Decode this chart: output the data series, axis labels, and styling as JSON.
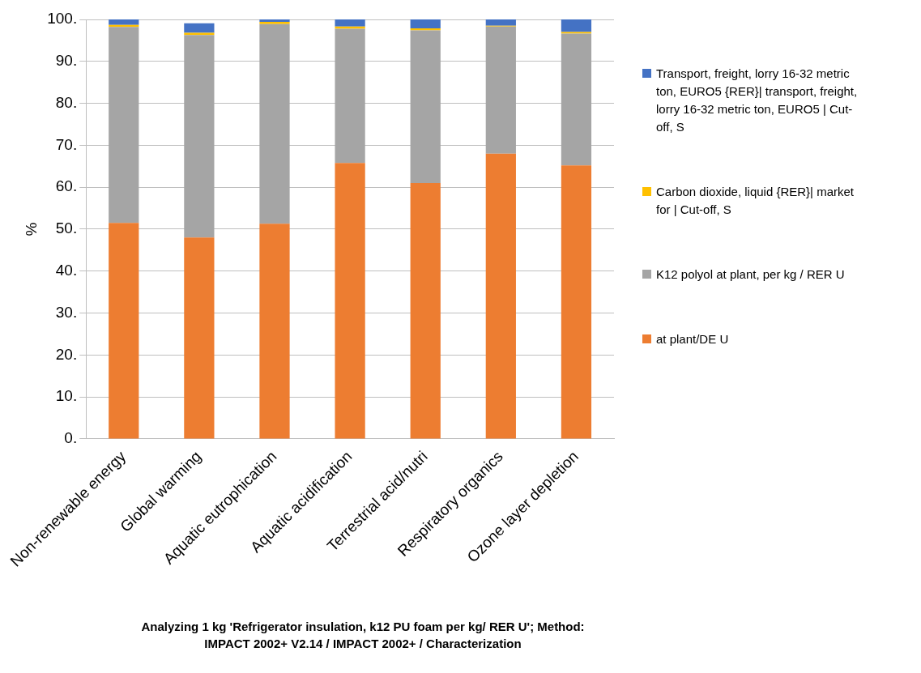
{
  "chart_data": {
    "type": "bar",
    "stacked": true,
    "ylabel": "%",
    "xlabel": "Analyzing 1 kg 'Refrigerator insulation, k12 PU foam per kg/ RER U'; Method: IMPACT 2002+ V2.14 / IMPACT 2002+ / Characterization",
    "categories": [
      "Non-renewable energy",
      "Global warming",
      "Aquatic eutrophication",
      "Aquatic acidification",
      "Terrestrial acid/nutri",
      "Respiratory organics",
      "Ozone layer depletion"
    ],
    "series": [
      {
        "name": "at plant/DE U",
        "color": "#ed7d31",
        "values": [
          51.5,
          48.0,
          51.3,
          65.8,
          61.0,
          68.0,
          65.2
        ]
      },
      {
        "name": "K12 polyol at plant, per kg / RER U",
        "color": "#a5a5a5",
        "values": [
          46.7,
          48.3,
          47.6,
          32.0,
          36.4,
          30.3,
          31.4
        ]
      },
      {
        "name": "Carbon dioxide, liquid {RER}| market for | Cut-off, S",
        "color": "#ffc000",
        "values": [
          0.5,
          0.5,
          0.5,
          0.5,
          0.5,
          0.2,
          0.4
        ]
      },
      {
        "name": "Transport, freight, lorry 16-32 metric ton, EURO5 {RER}| transport, freight, lorry 16-32 metric ton, EURO5 | Cut-off, S",
        "color": "#4472c4",
        "values": [
          1.3,
          2.3,
          0.6,
          1.7,
          2.1,
          1.5,
          3.0
        ]
      }
    ],
    "ylim": [
      0,
      100
    ],
    "yticks": [
      {
        "value": 0,
        "label": "0."
      },
      {
        "value": 10,
        "label": "10."
      },
      {
        "value": 20,
        "label": "20."
      },
      {
        "value": 30,
        "label": "30."
      },
      {
        "value": 40,
        "label": "40."
      },
      {
        "value": 50,
        "label": "50."
      },
      {
        "value": 60,
        "label": "60."
      },
      {
        "value": 70,
        "label": "70."
      },
      {
        "value": 80,
        "label": "80."
      },
      {
        "value": 90,
        "label": "90."
      },
      {
        "value": 100,
        "label": "100."
      }
    ],
    "grid": "y",
    "legend": "right"
  }
}
